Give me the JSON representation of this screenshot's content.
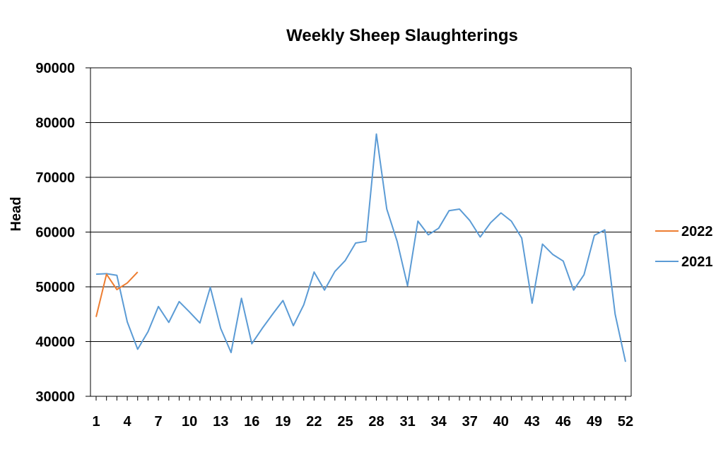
{
  "chart_data": {
    "type": "line",
    "title": "Weekly Sheep Slaughterings",
    "xlabel": "",
    "ylabel": "Head",
    "ylim": [
      30000,
      90000
    ],
    "xlim": [
      1,
      52
    ],
    "yticks": [
      "30000",
      "40000",
      "50000",
      "60000",
      "70000",
      "80000",
      "90000"
    ],
    "xtick_labels": [
      "1",
      "4",
      "7",
      "10",
      "13",
      "16",
      "19",
      "22",
      "25",
      "28",
      "31",
      "34",
      "37",
      "40",
      "43",
      "46",
      "49",
      "52"
    ],
    "grid": "horizontal",
    "legend_position": "right",
    "series": [
      {
        "name": "2022",
        "color": "#ED7D31",
        "x": [
          1,
          2,
          3,
          4,
          5
        ],
        "values": [
          44500,
          52300,
          49500,
          50700,
          52700
        ]
      },
      {
        "name": "2021",
        "color": "#5B9BD5",
        "x": [
          1,
          2,
          3,
          4,
          5,
          6,
          7,
          8,
          9,
          10,
          11,
          12,
          13,
          14,
          15,
          16,
          17,
          18,
          19,
          20,
          21,
          22,
          23,
          24,
          25,
          26,
          27,
          28,
          29,
          30,
          31,
          32,
          33,
          34,
          35,
          36,
          37,
          38,
          39,
          40,
          41,
          42,
          43,
          44,
          45,
          46,
          47,
          48,
          49,
          50,
          51,
          52
        ],
        "values": [
          52300,
          52400,
          52100,
          43600,
          38600,
          41800,
          46400,
          43500,
          47300,
          45400,
          43400,
          49900,
          42400,
          38000,
          47900,
          39600,
          42400,
          45000,
          47500,
          42900,
          46700,
          52700,
          49400,
          52800,
          54800,
          58000,
          58300,
          77900,
          64200,
          58300,
          50200,
          62000,
          59500,
          60700,
          63900,
          64200,
          62100,
          59100,
          61700,
          63500,
          62000,
          58900,
          47000,
          57800,
          55900,
          54700,
          49400,
          52200,
          59400,
          60400,
          45000,
          36300
        ]
      }
    ]
  }
}
